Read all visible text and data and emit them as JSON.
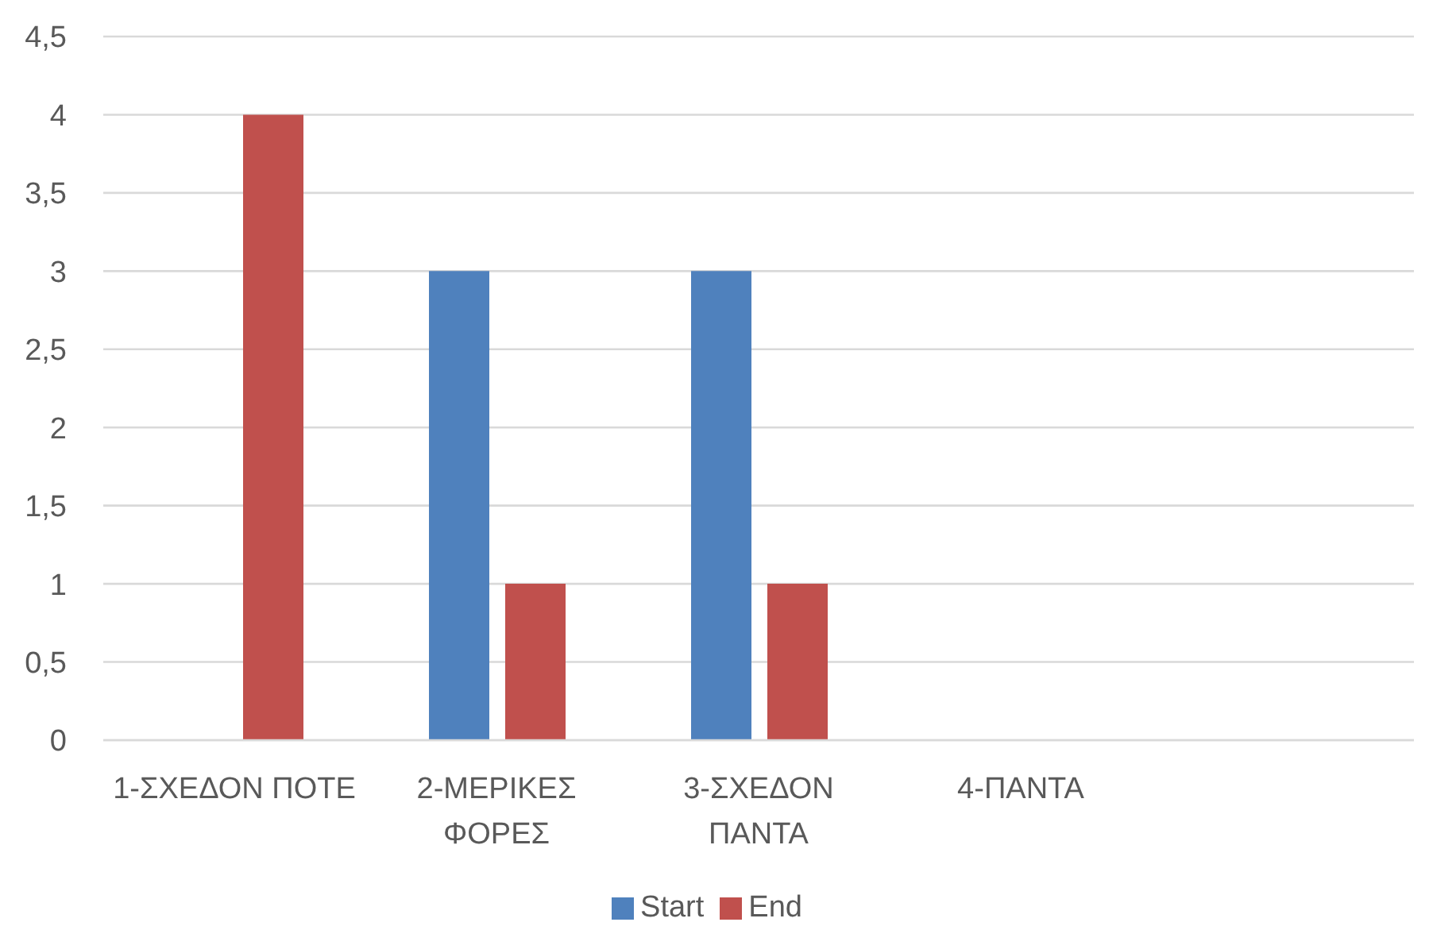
{
  "chart_data": {
    "type": "bar",
    "categories": [
      "1-ΣΧΕΔΟΝ ΠΟΤΕ",
      "2-ΜΕΡΙΚΕΣ ΦΟΡΕΣ",
      "3-ΣΧΕΔΟΝ ΠΑΝΤΑ",
      "4-ΠΑΝΤΑ",
      null
    ],
    "series": [
      {
        "name": "Start",
        "color": "#4f81bd",
        "values": [
          0,
          3,
          3,
          0,
          null
        ]
      },
      {
        "name": "End",
        "color": "#c0504d",
        "values": [
          4,
          1,
          1,
          0,
          null
        ]
      }
    ],
    "ylim": [
      0,
      4.5
    ],
    "yticks": [
      0,
      {
        "value": 0.5,
        "label": "0,5"
      },
      1,
      {
        "value": 1.5,
        "label": "1,5"
      },
      2,
      {
        "value": 2.5,
        "label": "2,5"
      },
      3,
      {
        "value": 3.5,
        "label": "3,5"
      },
      4,
      {
        "value": 4.5,
        "label": "4,5"
      }
    ],
    "grid": "y",
    "legend": "bottom"
  }
}
